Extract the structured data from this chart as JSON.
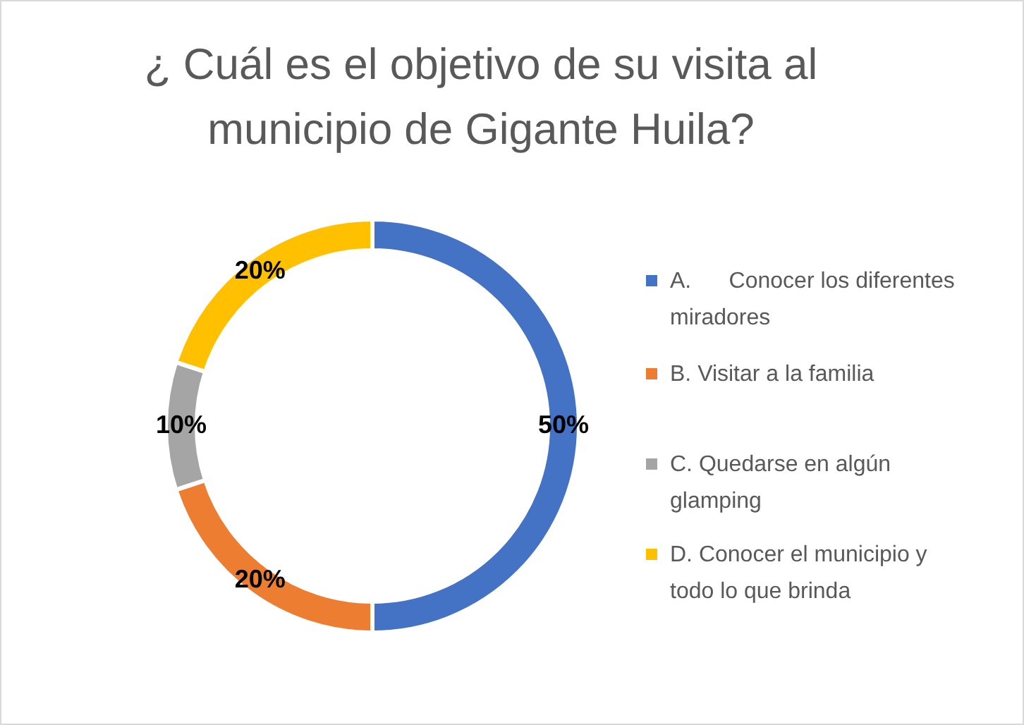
{
  "chart_data": {
    "type": "donut",
    "title": "¿ Cuál es el objetivo de su visita al municipio de Gigante Huila?",
    "categories": [
      "A.      Conocer los diferentes miradores",
      "B. Visitar a la familia",
      "C. Quedarse en algún glamping",
      "D. Conocer el municipio y todo lo que brinda"
    ],
    "values": [
      50,
      20,
      10,
      20
    ],
    "colors": [
      "#4472c4",
      "#ed7d31",
      "#a5a5a5",
      "#ffc000"
    ],
    "value_labels": [
      "50%",
      "20%",
      "10%",
      "20%"
    ],
    "legend": "right"
  }
}
